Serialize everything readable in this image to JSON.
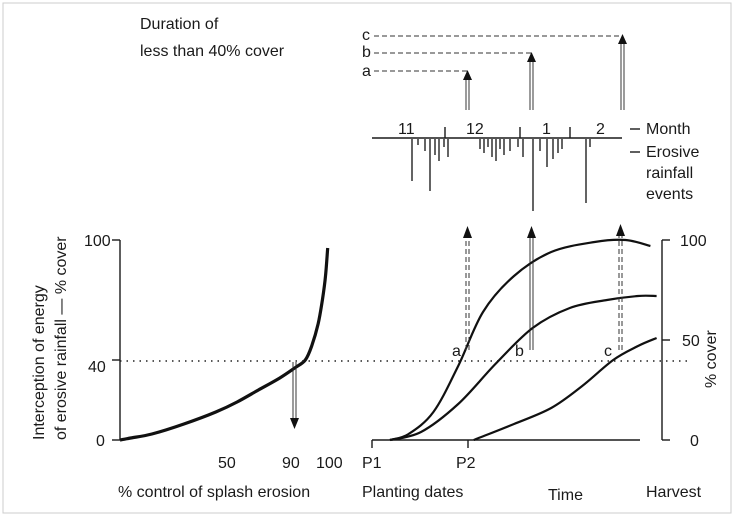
{
  "top_title": [
    "Duration of",
    "less than 40% cover"
  ],
  "duration_labels": [
    "c",
    "b",
    "a"
  ],
  "months": [
    "11",
    "12",
    "1",
    "2"
  ],
  "legend": {
    "month": "Month",
    "rainfall": [
      "Erosive",
      "rainfall",
      "events"
    ]
  },
  "left_chart": {
    "ylabel": [
      "Interception of energy",
      "of erosive rainfall — % cover"
    ],
    "yticks": [
      "100",
      "40",
      "0"
    ],
    "xticks": [
      "50",
      "90",
      "100"
    ],
    "xlabel": "% control of splash erosion",
    "curve": [
      [
        0,
        0
      ],
      [
        5,
        1
      ],
      [
        15,
        3
      ],
      [
        30,
        8
      ],
      [
        45,
        14
      ],
      [
        55,
        19
      ],
      [
        65,
        25
      ],
      [
        75,
        31
      ],
      [
        82,
        36
      ],
      [
        87,
        40
      ],
      [
        90,
        47
      ],
      [
        93,
        58
      ],
      [
        95,
        70
      ],
      [
        96.5,
        82
      ],
      [
        97.5,
        96
      ]
    ],
    "threshold": 40,
    "threshold_read": 90
  },
  "right_chart": {
    "yticks": [
      "100",
      "50",
      "0"
    ],
    "ylabel": "% cover",
    "xticks": [
      "P1",
      "P2"
    ],
    "xlabel_left": "Planting dates",
    "xlabel_mid": "Time",
    "xlabel_right": "Harvest",
    "curve_labels": [
      "a",
      "b",
      "c"
    ],
    "curves": [
      [
        [
          0,
          0
        ],
        [
          6,
          3
        ],
        [
          14,
          14
        ],
        [
          22,
          37
        ],
        [
          30,
          64
        ],
        [
          40,
          82
        ],
        [
          52,
          94
        ],
        [
          66,
          99
        ],
        [
          76,
          100
        ],
        [
          84,
          97
        ]
      ],
      [
        [
          0,
          0
        ],
        [
          10,
          4
        ],
        [
          22,
          18
        ],
        [
          34,
          38
        ],
        [
          46,
          56
        ],
        [
          58,
          66
        ],
        [
          70,
          70
        ],
        [
          80,
          72
        ],
        [
          86,
          72
        ]
      ],
      [
        [
          27,
          0
        ],
        [
          40,
          8
        ],
        [
          52,
          16
        ],
        [
          62,
          27
        ],
        [
          72,
          40
        ],
        [
          80,
          47
        ],
        [
          86,
          51
        ]
      ]
    ]
  },
  "rainfall_events": [
    {
      "x": 412,
      "d": 42
    },
    {
      "x": 418,
      "d": 6
    },
    {
      "x": 425,
      "d": 12
    },
    {
      "x": 430,
      "d": 52
    },
    {
      "x": 435,
      "d": 16
    },
    {
      "x": 439,
      "d": 22
    },
    {
      "x": 444,
      "d": 8
    },
    {
      "x": 448,
      "d": 18
    },
    {
      "x": 480,
      "d": 10
    },
    {
      "x": 484,
      "d": 14
    },
    {
      "x": 488,
      "d": 8
    },
    {
      "x": 492,
      "d": 18
    },
    {
      "x": 496,
      "d": 22
    },
    {
      "x": 500,
      "d": 10
    },
    {
      "x": 504,
      "d": 16
    },
    {
      "x": 510,
      "d": 12
    },
    {
      "x": 518,
      "d": 8
    },
    {
      "x": 523,
      "d": 18
    },
    {
      "x": 533,
      "d": 72
    },
    {
      "x": 540,
      "d": 12
    },
    {
      "x": 547,
      "d": 28
    },
    {
      "x": 553,
      "d": 20
    },
    {
      "x": 558,
      "d": 14
    },
    {
      "x": 562,
      "d": 10
    },
    {
      "x": 586,
      "d": 64
    },
    {
      "x": 590,
      "d": 8
    }
  ]
}
